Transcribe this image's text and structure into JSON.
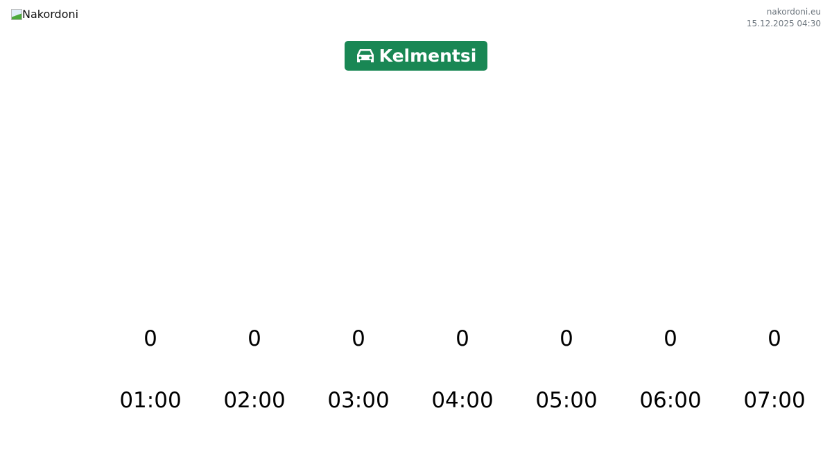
{
  "header": {
    "logo_alt": "Nakordoni",
    "site": "nakordoni.eu",
    "datetime": "15.12.2025 04:30"
  },
  "checkpoint": {
    "icon": "car-icon",
    "name": "Kelmentsi",
    "color": "#198754"
  },
  "timeline": [
    {
      "value": "0",
      "time": "01:00"
    },
    {
      "value": "0",
      "time": "02:00"
    },
    {
      "value": "0",
      "time": "03:00"
    },
    {
      "value": "0",
      "time": "04:00"
    },
    {
      "value": "0",
      "time": "05:00"
    },
    {
      "value": "0",
      "time": "06:00"
    },
    {
      "value": "0",
      "time": "07:00"
    }
  ]
}
